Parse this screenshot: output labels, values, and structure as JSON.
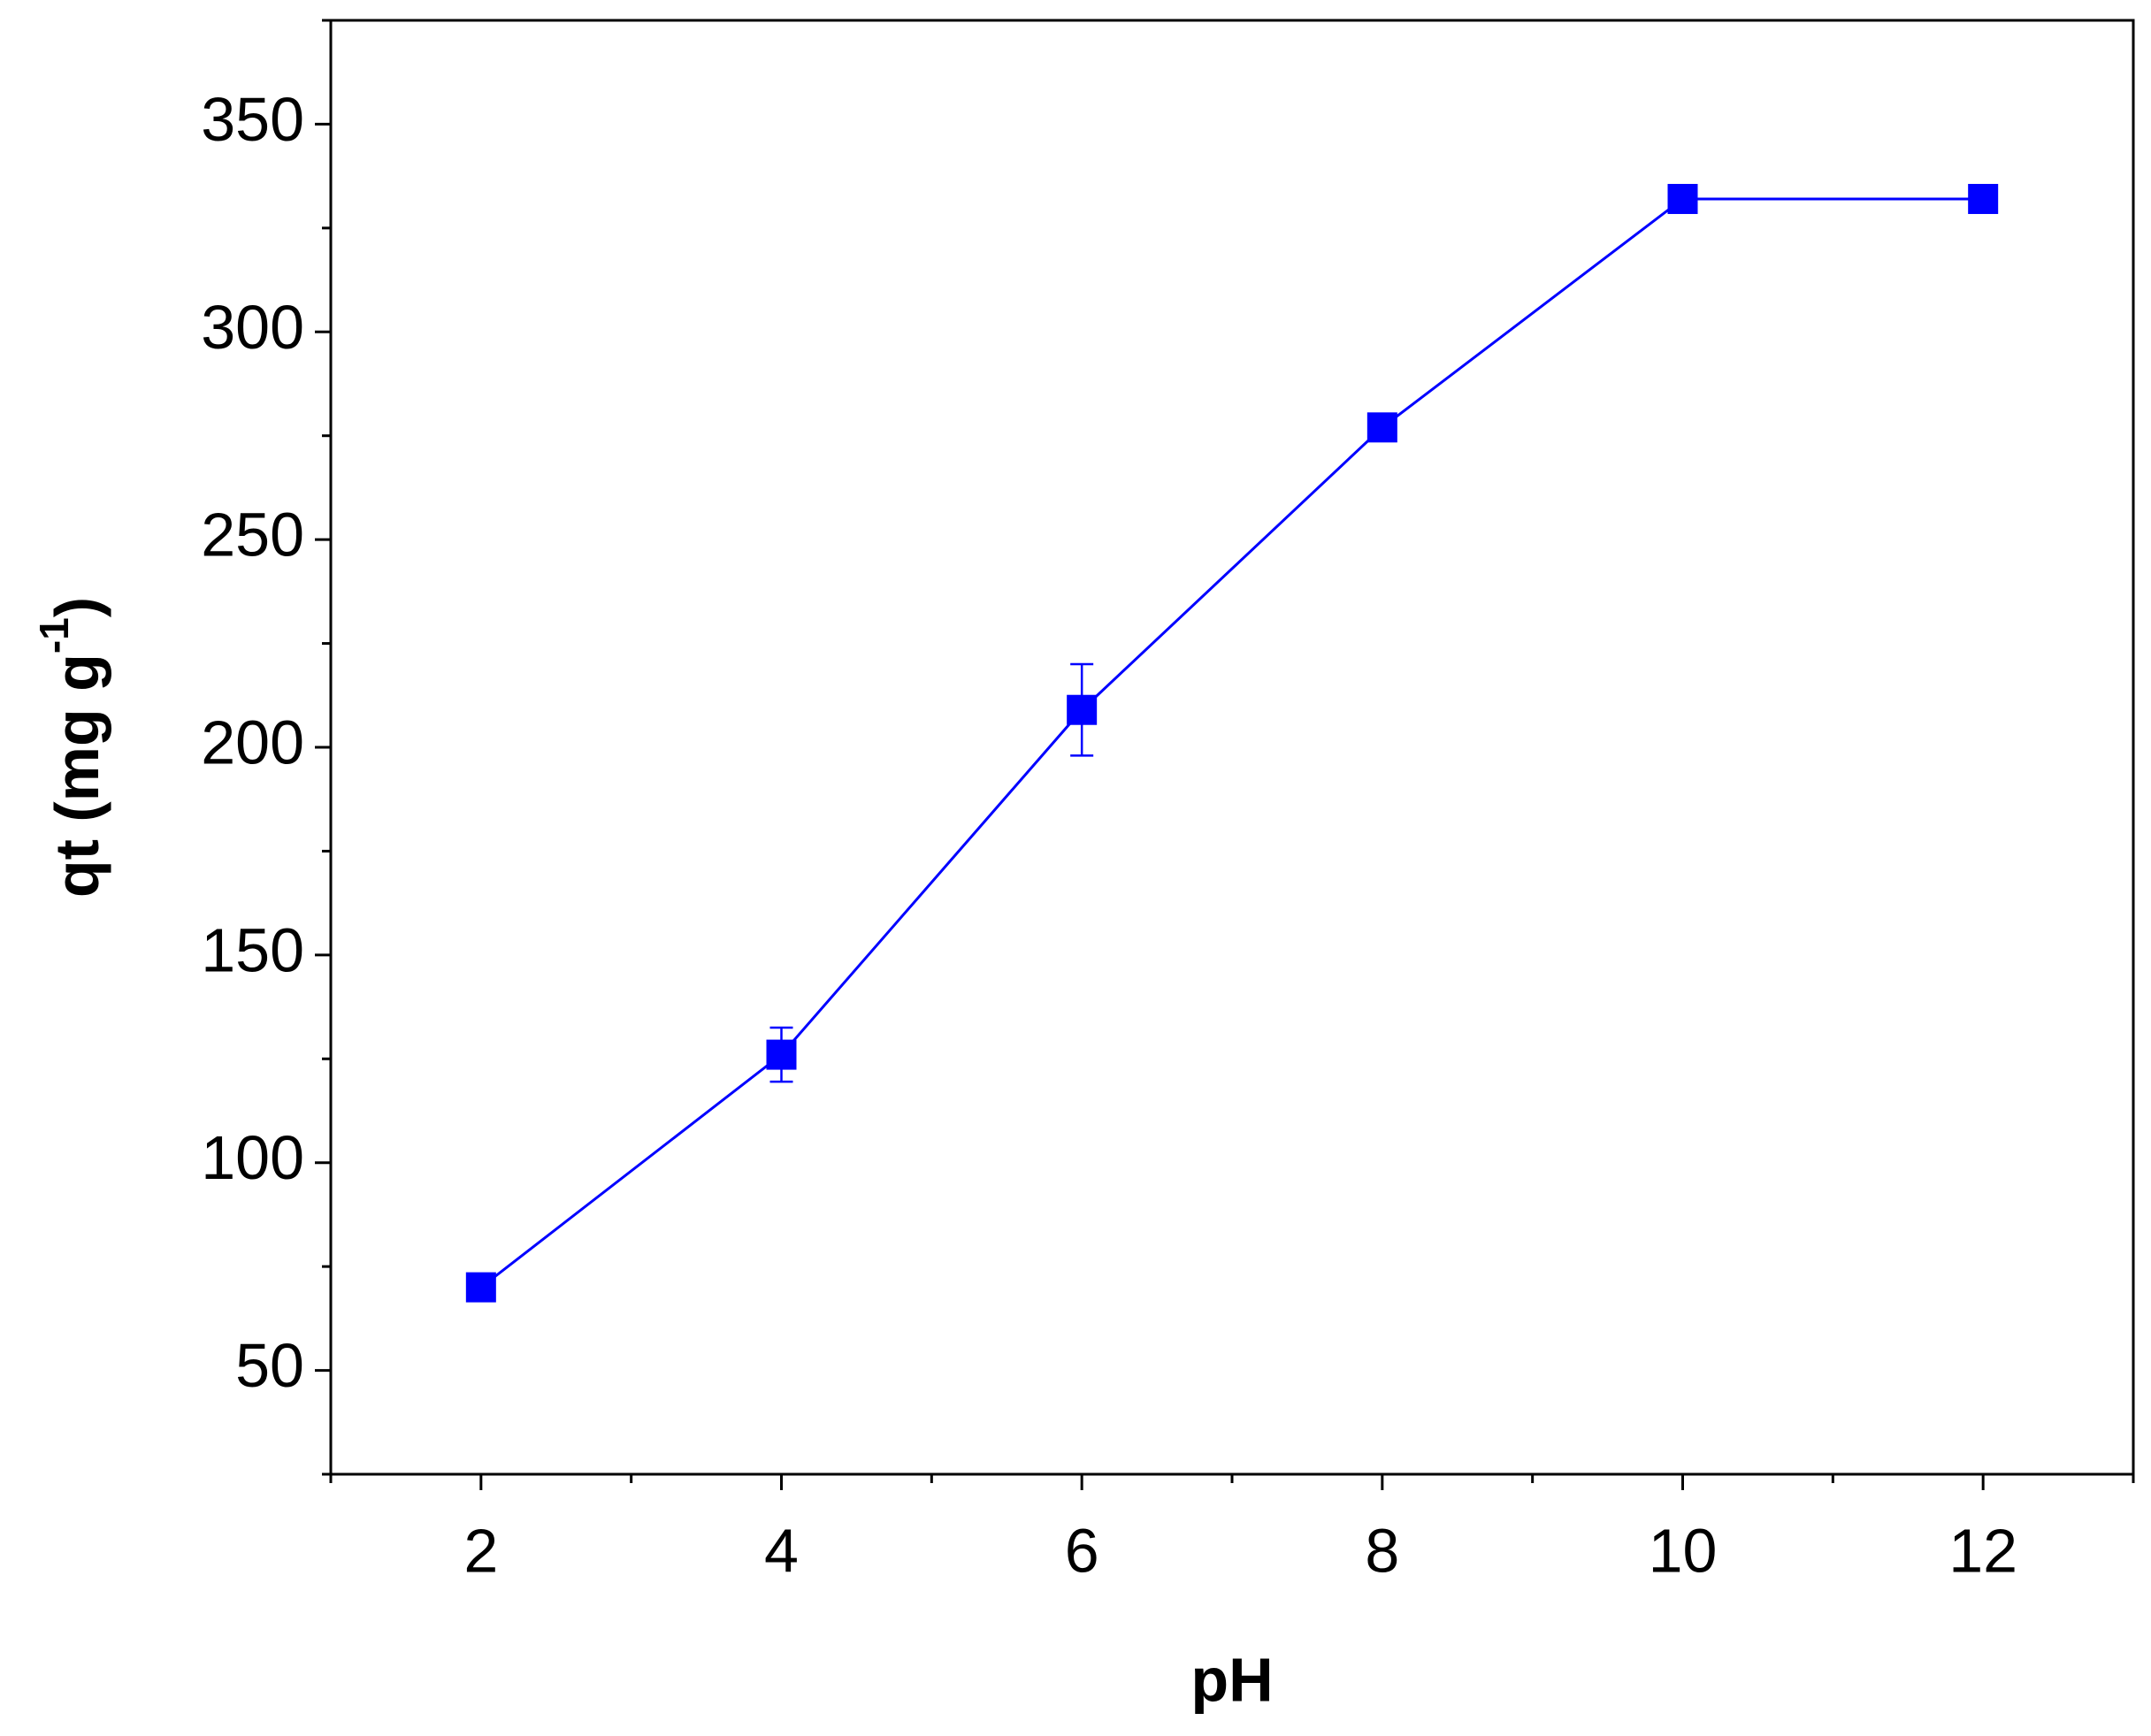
{
  "chart_data": {
    "type": "line",
    "x_label": "pH",
    "y_label": "qt (mg g",
    "y_label_sup": "-1",
    "y_label_end": ")",
    "x": [
      2,
      4,
      6,
      8,
      10,
      12
    ],
    "series": [
      {
        "color": "#0000ff",
        "values": [
          70,
          126,
          209,
          277,
          332,
          332
        ],
        "errors": [
          null,
          6.5,
          11,
          null,
          null,
          null
        ]
      }
    ],
    "xlim": [
      1,
      13
    ],
    "xticks": [
      2,
      4,
      6,
      8,
      10,
      12
    ],
    "ylim": [
      25,
      375
    ],
    "yticks": [
      50,
      100,
      150,
      200,
      250,
      300,
      350
    ],
    "grid": false
  }
}
